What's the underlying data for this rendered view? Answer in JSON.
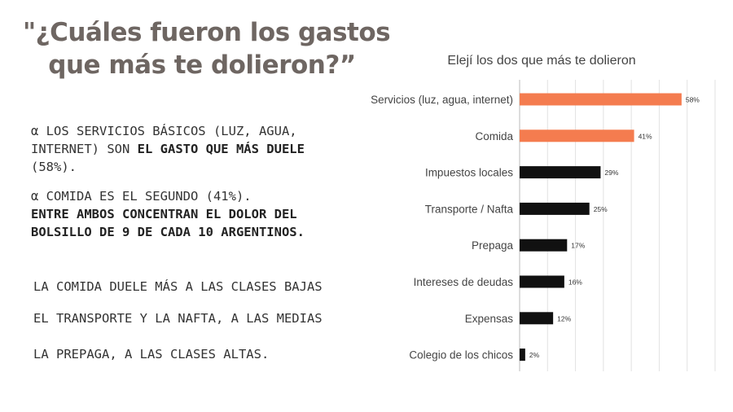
{
  "title": {
    "line1": "\"¿Cuáles fueron los gastos",
    "line2": "que más te dolieron?”"
  },
  "paragraph1": {
    "prefix": "α LOS SERVICIOS BÁSICOS (LUZ, AGUA, INTERNET) SON ",
    "bold": "EL GASTO QUE MÁS DUELE",
    "suffix": " (58%)."
  },
  "paragraph2": {
    "prefix": "α COMIDA ES EL SEGUNDO (41%).",
    "bold": "ENTRE AMBOS CONCENTRAN EL DOLOR DEL BOLSILLO DE 9 DE CADA 10 ARGENTINOS."
  },
  "notes": [
    "LA COMIDA DUELE MÁS A LAS CLASES BAJAS",
    "EL TRANSPORTE Y LA NAFTA, A LAS MEDIAS",
    "LA PREPAGA, A LAS CLASES ALTAS."
  ],
  "colors": {
    "highlight": "#f47c4f",
    "default": "#111111",
    "grid": "#e2e2e2",
    "title": "#6e6662"
  },
  "chart_data": {
    "type": "bar",
    "orientation": "horizontal",
    "title": "Elejí los dos que más te dolieron",
    "categories": [
      "Servicios (luz, agua, internet)",
      "Comida",
      "Impuestos locales",
      "Transporte / Nafta",
      "Prepaga",
      "Intereses de deudas",
      "Expensas",
      "Colegio de los chicos"
    ],
    "values": [
      58,
      41,
      29,
      25,
      17,
      16,
      12,
      2
    ],
    "value_labels": [
      "58%",
      "41%",
      "29%",
      "25%",
      "17%",
      "16%",
      "12%",
      "2%"
    ],
    "highlighted": [
      true,
      true,
      false,
      false,
      false,
      false,
      false,
      false
    ],
    "xlim": [
      0,
      70
    ],
    "grid": true
  }
}
